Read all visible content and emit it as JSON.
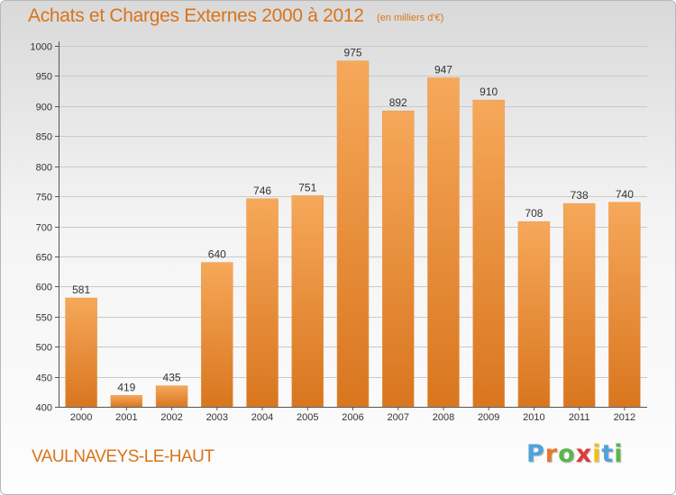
{
  "header": {
    "title": "Achats et Charges Externes 2000 à 2012",
    "unit": "(en milliers d'€)"
  },
  "footer": {
    "commune": "VAULNAVEYS-LE-HAUT",
    "logo_letters": [
      "P",
      "r",
      "o",
      "x",
      "i",
      "t",
      "i"
    ],
    "logo_colors": [
      "#4fa3d9",
      "#e8792b",
      "#5bb54a",
      "#e03a3a",
      "#f0c01a",
      "#4fa3d9",
      "#5bb54a"
    ]
  },
  "colors": {
    "accent": "#d8741a",
    "bar_light": "#f6a85a",
    "bar_dark": "#d9761f",
    "grid": "#c9c9c9",
    "axis": "#555555"
  },
  "chart_data": {
    "type": "bar",
    "categories": [
      "2000",
      "2001",
      "2002",
      "2003",
      "2004",
      "2005",
      "2006",
      "2007",
      "2008",
      "2009",
      "2010",
      "2011",
      "2012"
    ],
    "values": [
      581,
      419,
      435,
      640,
      746,
      751,
      975,
      892,
      947,
      910,
      708,
      738,
      740
    ],
    "title": "Achats et Charges Externes 2000 à 2012",
    "ylim": [
      400,
      1000
    ],
    "yticks": [
      400,
      450,
      500,
      550,
      600,
      650,
      700,
      750,
      800,
      850,
      900,
      950,
      1000
    ],
    "grid": true,
    "data_labels": true
  }
}
